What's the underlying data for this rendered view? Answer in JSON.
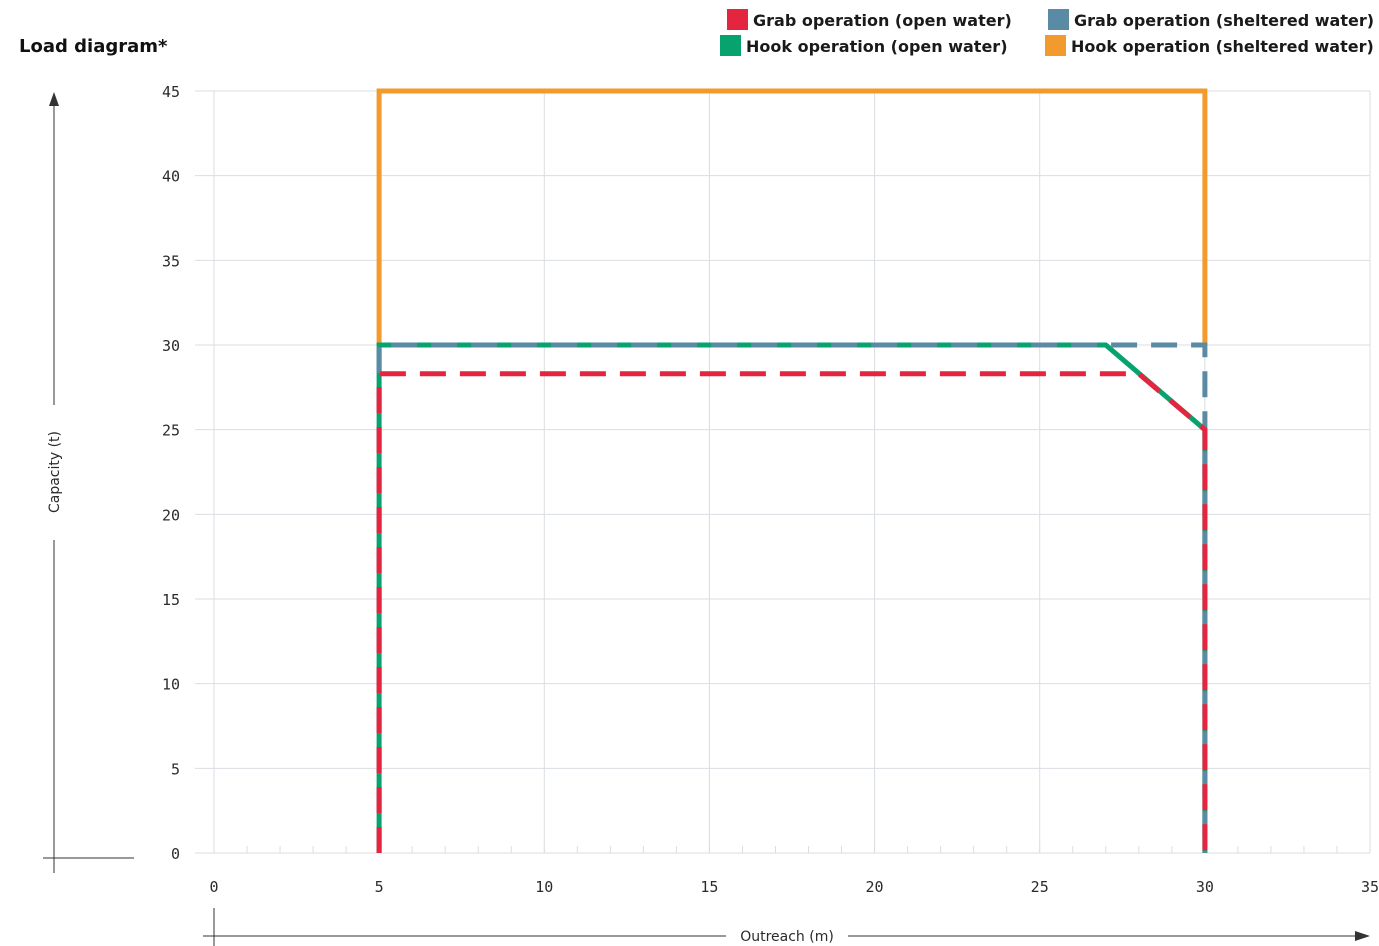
{
  "chart_data": {
    "type": "line",
    "title": "Load diagram*",
    "xlabel": "Outreach (m)",
    "ylabel": "Capacity (t)",
    "xlim": [
      0,
      35
    ],
    "ylim": [
      0,
      45
    ],
    "x_ticks": [
      0,
      5,
      10,
      15,
      20,
      25,
      30,
      35
    ],
    "y_ticks": [
      0,
      5,
      10,
      15,
      20,
      25,
      30,
      35,
      40,
      45
    ],
    "grid": true,
    "legend_position": "top-right",
    "series": [
      {
        "name": "Hook operation (sheltered water)",
        "color": "#F39A2E",
        "dashed": false,
        "x": [
          5,
          5,
          30,
          30
        ],
        "y": [
          30,
          45,
          45,
          30
        ]
      },
      {
        "name": "Hook operation (open water)",
        "color": "#07A36E",
        "dashed": false,
        "x": [
          5,
          5,
          27,
          30,
          30
        ],
        "y": [
          0,
          30,
          30,
          25,
          0
        ]
      },
      {
        "name": "Grab operation (sheltered water)",
        "color": "#5B8BA4",
        "dashed": true,
        "x": [
          5,
          5,
          30,
          30
        ],
        "y": [
          0,
          30,
          30,
          0
        ]
      },
      {
        "name": "Grab operation (open water)",
        "color": "#E4253F",
        "dashed": true,
        "x": [
          5,
          5,
          28,
          30,
          30
        ],
        "y": [
          0,
          28.3,
          28.3,
          25,
          0
        ]
      }
    ],
    "legend": [
      {
        "name": "Grab operation (open water)",
        "color": "#E4253F"
      },
      {
        "name": "Grab operation (sheltered water)",
        "color": "#5B8BA4"
      },
      {
        "name": "Hook operation (open water)",
        "color": "#07A36E"
      },
      {
        "name": "Hook operation (sheltered water)",
        "color": "#F39A2E"
      }
    ]
  }
}
